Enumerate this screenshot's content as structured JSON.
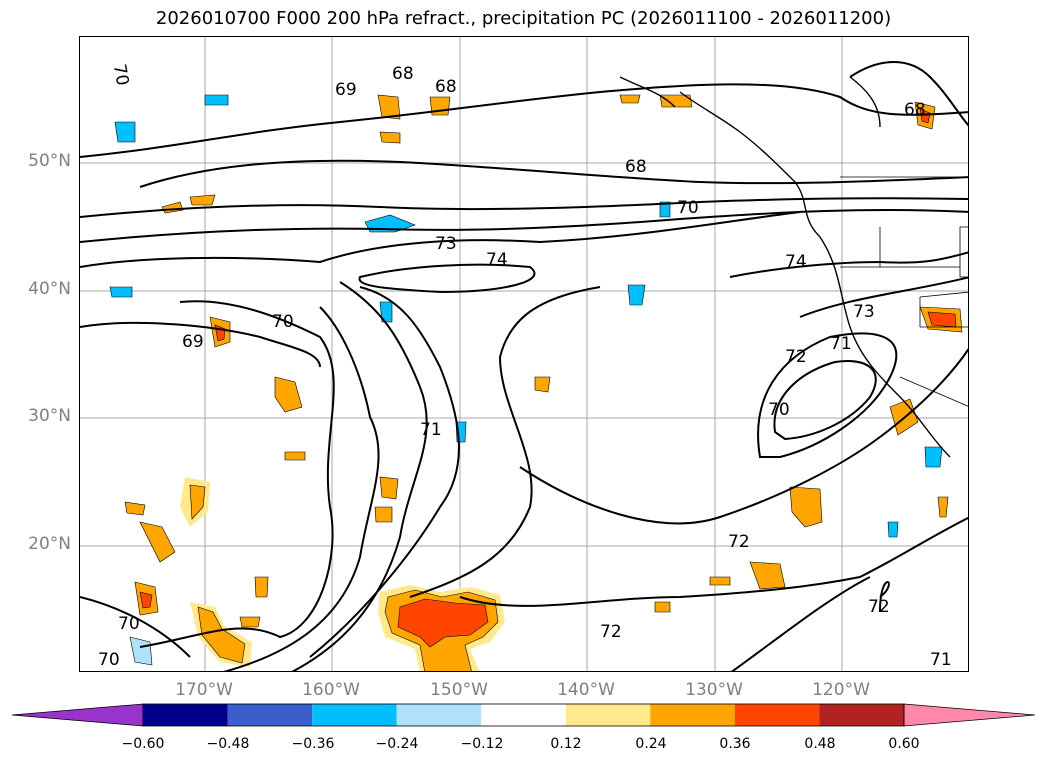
{
  "title": "2026010700 F000 200 hPa refract., precipitation PC (2026011100 - 2026011200)",
  "lat_labels": [
    "50°N",
    "40°N",
    "30°N",
    "20°N"
  ],
  "lon_labels": [
    "170°W",
    "160°W",
    "150°W",
    "140°W",
    "130°W",
    "120°W"
  ],
  "contour_labels": [
    "70",
    "68",
    "69",
    "68",
    "68",
    "70",
    "68",
    "73",
    "74",
    "74",
    "70",
    "69",
    "73",
    "71",
    "72",
    "70",
    "71",
    "72",
    "72",
    "72",
    "70",
    "70",
    "71"
  ],
  "colorbar": {
    "ticks": [
      "−0.60",
      "−0.48",
      "−0.36",
      "−0.24",
      "−0.12",
      "0.12",
      "0.24",
      "0.36",
      "0.48",
      "0.60"
    ],
    "colors": [
      "#9933cc",
      "#00008b",
      "#3a5fcd",
      "#00bfff",
      "#aee2fa",
      "#ffffff",
      "#ffe98a",
      "#ffa500",
      "#ff4500",
      "#b22222",
      "#ff88aa"
    ]
  }
}
